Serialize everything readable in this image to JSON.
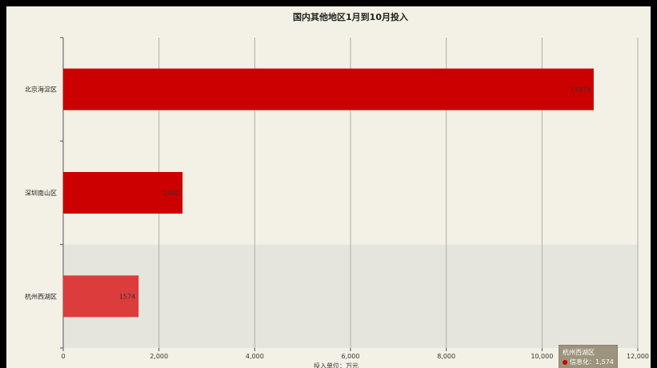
{
  "chart_data": {
    "type": "bar",
    "orientation": "horizontal",
    "title": "国内其他地区1月到10月投入",
    "xlabel": "投入单位：万元",
    "ylabel": "",
    "categories": [
      "北京海淀区",
      "深圳南山区",
      "杭州西湖区"
    ],
    "values": [
      11079,
      2492,
      1574
    ],
    "data_labels": [
      "11079",
      "2492",
      "1574"
    ],
    "xlim": [
      0,
      12000
    ],
    "x_ticks": [
      "0",
      "2,000",
      "4,000",
      "6,000",
      "8,000",
      "10,000",
      "12,000"
    ],
    "grid": true,
    "colors": {
      "bar": "#cc0000",
      "bar_highlight": "#dd3c3c",
      "highlight_band": "#e6e5dd",
      "background": "#f3f1e6",
      "grid": "#b0aea4",
      "axis": "#555555"
    },
    "highlighted_index": 2
  },
  "tooltip": {
    "title": "杭州西湖区",
    "series_label": "信息化：1,574",
    "marker_color": "#cc0000"
  }
}
